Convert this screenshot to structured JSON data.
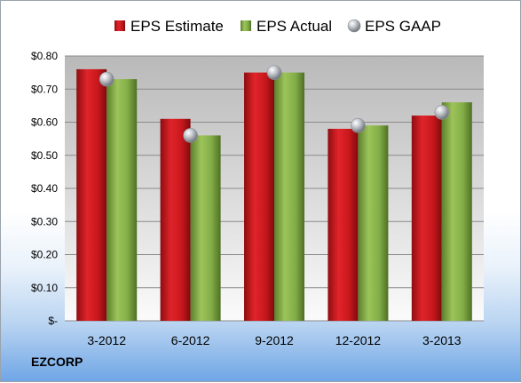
{
  "chart_data": {
    "type": "bar",
    "categories": [
      "3-2012",
      "6-2012",
      "9-2012",
      "12-2012",
      "3-2013"
    ],
    "series": [
      {
        "name": "EPS Estimate",
        "values": [
          0.76,
          0.61,
          0.75,
          0.58,
          0.62
        ],
        "color": "#c0141a"
      },
      {
        "name": "EPS Actual",
        "values": [
          0.73,
          0.56,
          0.75,
          0.59,
          0.66
        ],
        "color": "#7ea843"
      },
      {
        "name": "EPS GAAP",
        "values": [
          0.73,
          0.56,
          0.75,
          0.59,
          0.63
        ],
        "color": "#b4b8be",
        "marker": "sphere"
      }
    ],
    "y_ticks": [
      "$-",
      "$0.10",
      "$0.20",
      "$0.30",
      "$0.40",
      "$0.50",
      "$0.60",
      "$0.70",
      "$0.80"
    ],
    "ylim": [
      0,
      0.8
    ],
    "grid": true,
    "legend": "top",
    "company": "EZCORP"
  }
}
